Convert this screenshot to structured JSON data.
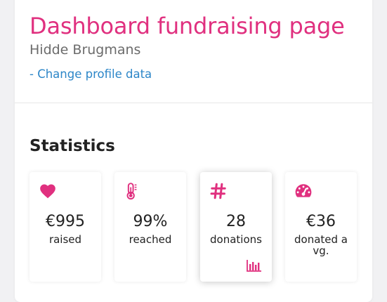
{
  "header": {
    "title": "Dashboard fundraising page",
    "name": "Hidde Brugmans",
    "profile_link": "- Change profile data"
  },
  "statistics": {
    "title": "Statistics",
    "items": [
      {
        "value": "€995",
        "label": "raised",
        "icon": "heart-icon"
      },
      {
        "value": "99%",
        "label": "reached",
        "icon": "thermometer-icon"
      },
      {
        "value": "28",
        "label": "donations",
        "icon": "hash-icon"
      },
      {
        "value": "€36",
        "label": "donated avg.",
        "icon": "gauge-icon"
      }
    ]
  },
  "colors": {
    "accent": "#e0307f",
    "link": "#2c86c8"
  }
}
